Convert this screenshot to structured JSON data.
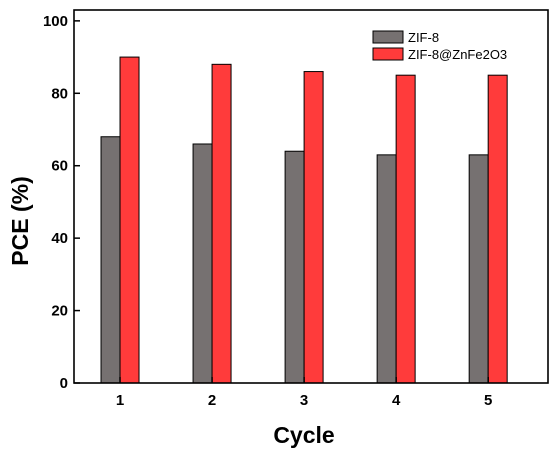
{
  "chart_data": {
    "type": "bar",
    "title": "",
    "xlabel": "Cycle",
    "ylabel": "PCE (%)",
    "categories": [
      "1",
      "2",
      "3",
      "4",
      "5"
    ],
    "ylim": [
      0,
      103
    ],
    "yticks": [
      0,
      20,
      40,
      60,
      80,
      100
    ],
    "grid": false,
    "legend_position": "top-right",
    "series": [
      {
        "name": "ZIF-8",
        "color": "#767171",
        "values": [
          68,
          66,
          64,
          63,
          63
        ]
      },
      {
        "name": "ZIF-8@ZnFe2O3",
        "color": "#ff3b3b",
        "values": [
          90,
          88,
          86,
          85,
          85
        ]
      }
    ]
  }
}
